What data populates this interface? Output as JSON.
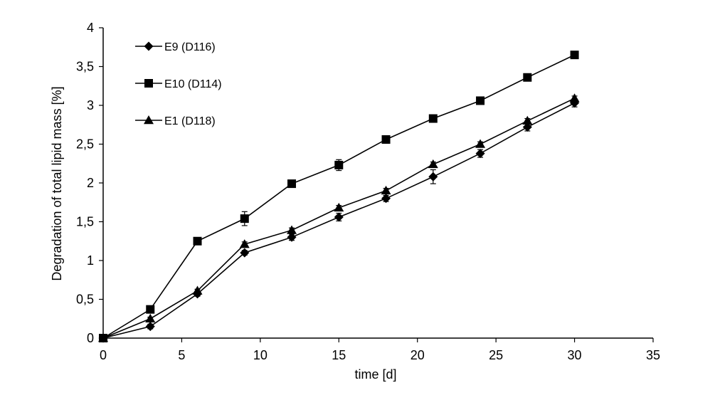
{
  "chart_data": {
    "type": "line",
    "title": "",
    "xlabel": "time [d]",
    "ylabel": "Degradation of total lipid mass [%]",
    "xlim": [
      0,
      35
    ],
    "ylim": [
      0,
      4
    ],
    "x_ticks": [
      "0",
      "5",
      "10",
      "15",
      "20",
      "25",
      "30",
      "35"
    ],
    "y_ticks": [
      "0",
      "0,5",
      "1",
      "1,5",
      "2",
      "2,5",
      "3",
      "3,5",
      "4"
    ],
    "grid": false,
    "legend_position": "top-left",
    "x": [
      0,
      3,
      6,
      9,
      12,
      15,
      18,
      21,
      24,
      27,
      30
    ],
    "series": [
      {
        "name": "E9 (D116)",
        "marker": "diamond",
        "values": [
          0,
          0.15,
          0.57,
          1.1,
          1.3,
          1.56,
          1.8,
          2.08,
          2.38,
          2.72,
          3.03
        ],
        "error": [
          0,
          0.03,
          0.03,
          0.03,
          0.04,
          0.05,
          0.04,
          0.09,
          0.05,
          0.05,
          0.05
        ]
      },
      {
        "name": "E10 (D114)",
        "marker": "square",
        "values": [
          0,
          0.37,
          1.25,
          1.54,
          1.99,
          2.23,
          2.56,
          2.83,
          3.06,
          3.36,
          3.65
        ],
        "error": [
          0,
          0.03,
          0.03,
          0.09,
          0.03,
          0.07,
          0.03,
          0.03,
          0.03,
          0.03,
          0.03
        ]
      },
      {
        "name": "E1 (D118)",
        "marker": "triangle",
        "values": [
          0,
          0.25,
          0.61,
          1.21,
          1.39,
          1.68,
          1.9,
          2.24,
          2.5,
          2.8,
          3.09
        ],
        "error": [
          0,
          0.02,
          0.02,
          0.03,
          0.03,
          0.03,
          0.03,
          0.03,
          0.03,
          0.03,
          0.03
        ]
      }
    ],
    "colors": {
      "line": "#000000",
      "marker": "#000000",
      "axis": "#000000"
    }
  }
}
